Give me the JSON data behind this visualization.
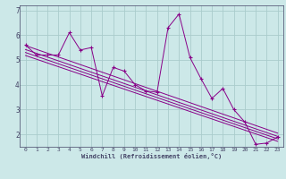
{
  "xlabel": "Windchill (Refroidissement éolien,°C)",
  "bg_color": "#cce8e8",
  "line_color": "#880088",
  "grid_color": "#aacccc",
  "tick_color": "#444466",
  "xlim": [
    -0.5,
    23.5
  ],
  "ylim": [
    1.5,
    7.2
  ],
  "yticks": [
    2,
    3,
    4,
    5,
    6,
    7
  ],
  "xticks": [
    0,
    1,
    2,
    3,
    4,
    5,
    6,
    7,
    8,
    9,
    10,
    11,
    12,
    13,
    14,
    15,
    16,
    17,
    18,
    19,
    20,
    21,
    22,
    23
  ],
  "main_x": [
    0,
    1,
    2,
    3,
    4,
    5,
    6,
    7,
    8,
    9,
    10,
    11,
    12,
    13,
    14,
    15,
    16,
    17,
    18,
    19,
    20,
    21,
    22,
    23
  ],
  "main_y": [
    5.6,
    5.2,
    5.2,
    5.2,
    6.1,
    5.4,
    5.5,
    3.55,
    4.7,
    4.55,
    4.0,
    3.75,
    3.7,
    6.3,
    6.85,
    5.1,
    4.25,
    3.45,
    3.85,
    3.0,
    2.5,
    1.6,
    1.65,
    1.9
  ],
  "reg_lines": [
    {
      "x0": 0,
      "y0": 5.58,
      "x1": 23,
      "y1": 2.05
    },
    {
      "x0": 0,
      "y0": 5.42,
      "x1": 23,
      "y1": 1.92
    },
    {
      "x0": 0,
      "y0": 5.3,
      "x1": 23,
      "y1": 1.82
    },
    {
      "x0": 0,
      "y0": 5.18,
      "x1": 23,
      "y1": 1.72
    }
  ]
}
